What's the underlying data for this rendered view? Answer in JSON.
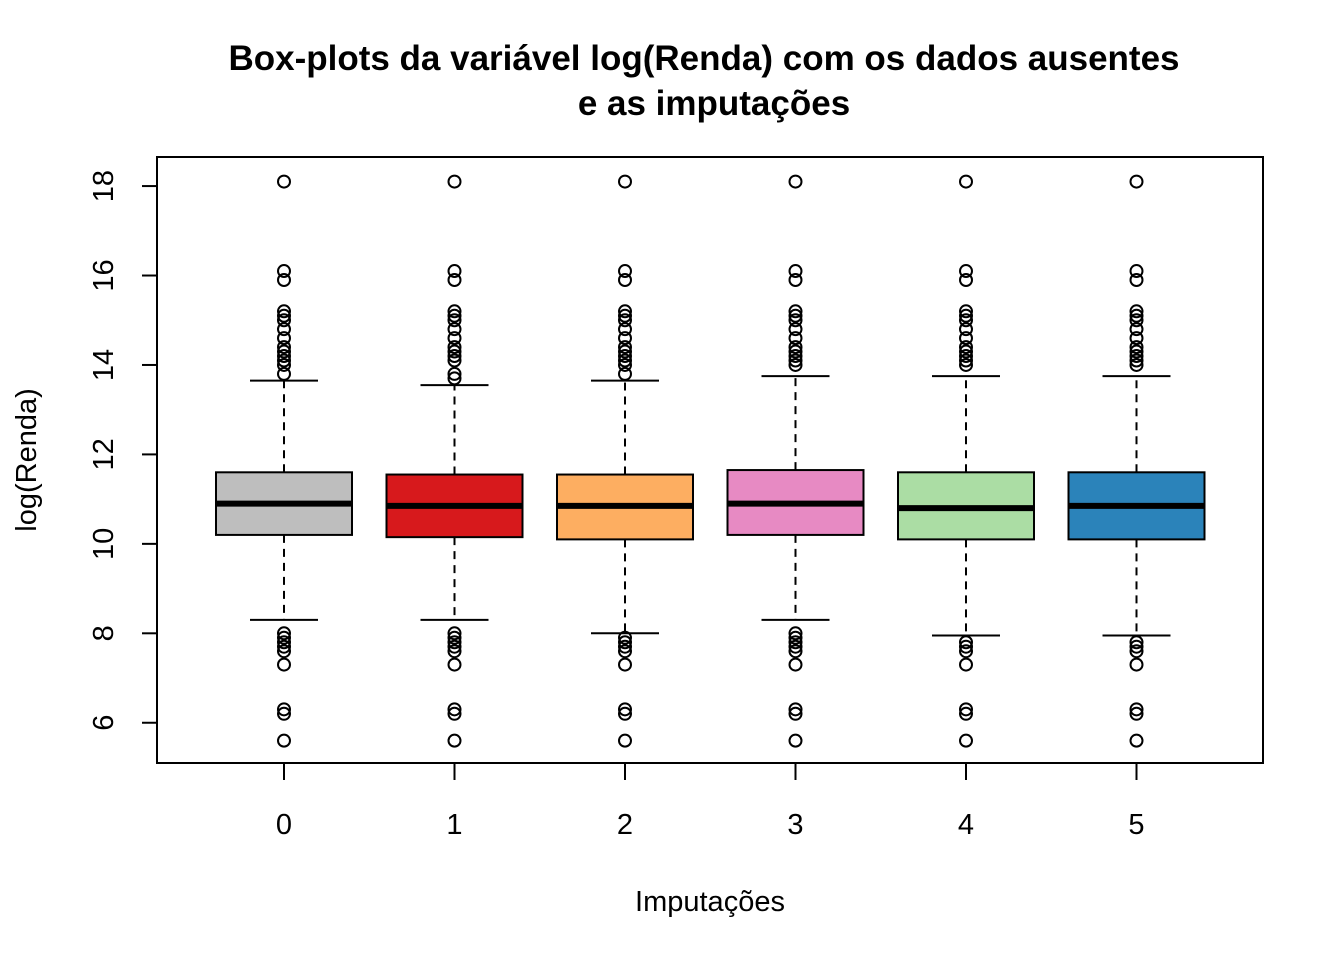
{
  "chart_data": {
    "type": "boxplot",
    "title": [
      "Box-plots da variável log(Renda) com os dados ausentes",
      "e as imputações"
    ],
    "xlabel": "Imputações",
    "ylabel": "log(Renda)",
    "categories": [
      "0",
      "1",
      "2",
      "3",
      "4",
      "5"
    ],
    "y_ticks": [
      6,
      8,
      10,
      12,
      14,
      16,
      18
    ],
    "ylim": [
      5.1,
      18.65
    ],
    "grid": false,
    "legend": "none",
    "colors": [
      "#bebebe",
      "#d7191c",
      "#fdae61",
      "#e78ac3",
      "#abdda4",
      "#2b83ba"
    ],
    "boxes": [
      {
        "category": "0",
        "whisker_low": 8.3,
        "q1": 10.2,
        "median": 10.9,
        "q3": 11.6,
        "whisker_high": 13.65,
        "outliers_high": [
          18.1,
          16.1,
          15.9,
          15.2,
          15.1,
          15.0,
          14.8,
          14.6,
          14.4,
          14.3,
          14.2,
          14.1,
          14.0,
          13.8
        ],
        "outliers_low": [
          8.0,
          7.9,
          7.8,
          7.7,
          7.6,
          7.3,
          6.3,
          6.2,
          5.6
        ]
      },
      {
        "category": "1",
        "whisker_low": 8.3,
        "q1": 10.15,
        "median": 10.85,
        "q3": 11.55,
        "whisker_high": 13.55,
        "outliers_high": [
          18.1,
          16.1,
          15.9,
          15.2,
          15.1,
          15.0,
          14.8,
          14.6,
          14.4,
          14.3,
          14.2,
          14.1,
          13.8,
          13.7
        ],
        "outliers_low": [
          8.0,
          7.9,
          7.8,
          7.7,
          7.6,
          7.3,
          6.3,
          6.2,
          5.6
        ]
      },
      {
        "category": "2",
        "whisker_low": 8.0,
        "q1": 10.1,
        "median": 10.85,
        "q3": 11.55,
        "whisker_high": 13.65,
        "outliers_high": [
          18.1,
          16.1,
          15.9,
          15.2,
          15.1,
          15.0,
          14.8,
          14.6,
          14.4,
          14.3,
          14.2,
          14.1,
          14.0,
          13.8
        ],
        "outliers_low": [
          7.9,
          7.8,
          7.7,
          7.6,
          7.3,
          6.3,
          6.2,
          5.6
        ]
      },
      {
        "category": "3",
        "whisker_low": 8.3,
        "q1": 10.2,
        "median": 10.9,
        "q3": 11.65,
        "whisker_high": 13.75,
        "outliers_high": [
          18.1,
          16.1,
          15.9,
          15.2,
          15.1,
          15.0,
          14.8,
          14.6,
          14.4,
          14.3,
          14.2,
          14.1,
          14.0
        ],
        "outliers_low": [
          8.0,
          7.9,
          7.8,
          7.7,
          7.6,
          7.3,
          6.3,
          6.2,
          5.6
        ]
      },
      {
        "category": "4",
        "whisker_low": 7.95,
        "q1": 10.1,
        "median": 10.8,
        "q3": 11.6,
        "whisker_high": 13.75,
        "outliers_high": [
          18.1,
          16.1,
          15.9,
          15.2,
          15.1,
          15.0,
          14.8,
          14.6,
          14.4,
          14.3,
          14.2,
          14.1,
          14.0
        ],
        "outliers_low": [
          7.8,
          7.7,
          7.6,
          7.3,
          6.3,
          6.2,
          5.6
        ]
      },
      {
        "category": "5",
        "whisker_low": 7.95,
        "q1": 10.1,
        "median": 10.85,
        "q3": 11.6,
        "whisker_high": 13.75,
        "outliers_high": [
          18.1,
          16.1,
          15.9,
          15.2,
          15.1,
          15.0,
          14.8,
          14.6,
          14.4,
          14.3,
          14.2,
          14.1,
          14.0
        ],
        "outliers_low": [
          7.8,
          7.7,
          7.6,
          7.3,
          6.3,
          6.2,
          5.6
        ]
      }
    ]
  }
}
